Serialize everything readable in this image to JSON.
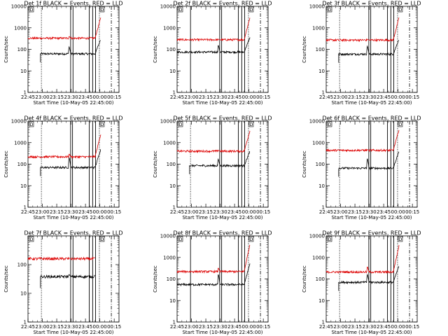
{
  "colors": {
    "events": "#000000",
    "lld": "#dd0000",
    "axes": "#000000"
  },
  "shared": {
    "xlabel": "Start Time (10-May-05 22:45:00)",
    "ylabel": "Counts/sec",
    "x_tick_labels": [
      "22:45",
      "23:00",
      "23:15",
      "23:30",
      "23:45",
      "00:00",
      "00:15"
    ],
    "y_tick_labels": [
      "1",
      "10",
      "100",
      "1000",
      "10000"
    ],
    "flag_marker": "D"
  },
  "chart_data": [
    {
      "type": "line",
      "title": "Det 1f BLACK = Events, RED = LLD",
      "y_scale": "log",
      "ylim": [
        1,
        10000
      ],
      "xlim": [
        0,
        95
      ],
      "x_unit": "minutes from 22:45",
      "vlines_solid": [
        44.5,
        47,
        64,
        67.5,
        70.5
      ],
      "vlines_dotted": [
        14,
        74.5
      ],
      "vlines_dashdot": [
        87
      ],
      "series": [
        {
          "start": 13,
          "end": 76,
          "base": 62,
          "spike_at": 43,
          "spike": 130,
          "rise_at": 70,
          "rise_to": 300
        },
        {
          "start": 0,
          "end": 76,
          "base": 330,
          "spike_at": 43,
          "spike": 400,
          "rise_at": 70,
          "rise_to": 3000
        }
      ]
    },
    {
      "type": "line",
      "title": "Det 2f BLACK = Events, RED = LLD",
      "y_scale": "log",
      "ylim": [
        1,
        10000
      ],
      "xlim": [
        0,
        95
      ],
      "x_unit": "minutes from 22:45",
      "vlines_solid": [
        14,
        44.5,
        46.5,
        64,
        67.5,
        70.5
      ],
      "vlines_dotted": [
        74.5
      ],
      "vlines_dashdot": [
        87
      ],
      "series": [
        {
          "start": 0,
          "end": 76,
          "base": 75,
          "spike_at": 43,
          "spike": 160,
          "rise_at": 70,
          "rise_to": 350
        },
        {
          "start": 0,
          "end": 76,
          "base": 280,
          "spike_at": 43,
          "spike": 300,
          "rise_at": 70,
          "rise_to": 3000
        }
      ]
    },
    {
      "type": "line",
      "title": "Det 3f BLACK = Events, RED = LLD",
      "y_scale": "log",
      "ylim": [
        1,
        10000
      ],
      "xlim": [
        0,
        95
      ],
      "x_unit": "minutes from 22:45",
      "vlines_solid": [
        44.5,
        46.5,
        64,
        67.5,
        70.5
      ],
      "vlines_dotted": [
        14,
        74.5
      ],
      "vlines_dashdot": [
        87
      ],
      "series": [
        {
          "start": 13,
          "end": 76,
          "base": 60,
          "spike_at": 43,
          "spike": 140,
          "rise_at": 70,
          "rise_to": 300
        },
        {
          "start": 0,
          "end": 76,
          "base": 270,
          "spike_at": 43,
          "spike": 300,
          "rise_at": 70,
          "rise_to": 3000
        }
      ]
    },
    {
      "type": "line",
      "title": "Det 4f BLACK = Events, RED = LLD",
      "y_scale": "log",
      "ylim": [
        1,
        10000
      ],
      "xlim": [
        0,
        95
      ],
      "x_unit": "minutes from 22:45",
      "vlines_solid": [
        44.5,
        46.5,
        64,
        67.5,
        70.5
      ],
      "vlines_dotted": [
        14,
        74.5
      ],
      "vlines_dashdot": [
        87
      ],
      "series": [
        {
          "start": 13,
          "end": 76,
          "base": 70,
          "spike_at": 43,
          "spike": 200,
          "rise_at": 70,
          "rise_to": 500
        },
        {
          "start": 0,
          "end": 76,
          "base": 220,
          "spike_at": 43,
          "spike": 300,
          "rise_at": 70,
          "rise_to": 2500
        }
      ]
    },
    {
      "type": "line",
      "title": "Det 5f BLACK = Events, RED = LLD",
      "y_scale": "log",
      "ylim": [
        1,
        10000
      ],
      "xlim": [
        0,
        95
      ],
      "x_unit": "minutes from 22:45",
      "vlines_solid": [
        44.5,
        46.5,
        64,
        67.5,
        70.5
      ],
      "vlines_dotted": [
        14,
        74.5
      ],
      "vlines_dashdot": [
        87
      ],
      "series": [
        {
          "start": 13,
          "end": 76,
          "base": 85,
          "spike_at": 43,
          "spike": 170,
          "rise_at": 70,
          "rise_to": 400
        },
        {
          "start": 0,
          "end": 76,
          "base": 400,
          "spike_at": 43,
          "spike": 450,
          "rise_at": 70,
          "rise_to": 3500
        }
      ]
    },
    {
      "type": "line",
      "title": "Det 6f BLACK = Events, RED = LLD",
      "y_scale": "log",
      "ylim": [
        1,
        10000
      ],
      "xlim": [
        0,
        95
      ],
      "x_unit": "minutes from 22:45",
      "vlines_solid": [
        44.5,
        46.5,
        64,
        67.5,
        70.5
      ],
      "vlines_dotted": [
        14,
        74.5
      ],
      "vlines_dashdot": [
        87
      ],
      "series": [
        {
          "start": 13,
          "end": 76,
          "base": 65,
          "spike_at": 43,
          "spike": 180,
          "rise_at": 70,
          "rise_to": 400
        },
        {
          "start": 0,
          "end": 76,
          "base": 440,
          "spike_at": 43,
          "spike": 480,
          "rise_at": 70,
          "rise_to": 4000
        }
      ]
    },
    {
      "type": "line",
      "title": "Det 7f BLACK = Events, RED = LLD",
      "y_scale": "log",
      "ylim": [
        1,
        1000
      ],
      "xlim": [
        0,
        95
      ],
      "x_unit": "minutes from 22:45",
      "y_tick_labels": [
        "1",
        "10",
        "100"
      ],
      "vlines_solid": [
        44.5,
        47,
        64,
        67.5,
        70.5
      ],
      "vlines_dotted": [
        14,
        74.5
      ],
      "vlines_dashdot": [
        87
      ],
      "series": [
        {
          "start": 13,
          "end": 70,
          "base": 38,
          "spike_at": 43,
          "spike": 45,
          "rise_at": 69,
          "rise_to": 45
        },
        {
          "start": 0,
          "end": 70,
          "base": 160,
          "spike_at": 43,
          "spike": 170,
          "rise_at": 69,
          "rise_to": 170
        }
      ]
    },
    {
      "type": "line",
      "title": "Det 8f BLACK = Events, RED = LLD",
      "y_scale": "log",
      "ylim": [
        1,
        10000
      ],
      "xlim": [
        0,
        95
      ],
      "x_unit": "minutes from 22:45",
      "vlines_solid": [
        14,
        44.5,
        46.5,
        64,
        67.5,
        70.5
      ],
      "vlines_dotted": [
        74.5
      ],
      "vlines_dashdot": [
        87
      ],
      "series": [
        {
          "start": 0,
          "end": 76,
          "base": 55,
          "spike_at": 43,
          "spike": 170,
          "rise_at": 70,
          "rise_to": 500
        },
        {
          "start": 0,
          "end": 76,
          "base": 220,
          "spike_at": 43,
          "spike": 330,
          "rise_at": 70,
          "rise_to": 4000
        }
      ]
    },
    {
      "type": "line",
      "title": "Det 9f BLACK = Events, RED = LLD",
      "y_scale": "log",
      "ylim": [
        1,
        10000
      ],
      "xlim": [
        0,
        95
      ],
      "x_unit": "minutes from 22:45",
      "vlines_solid": [
        44.5,
        46.5,
        64,
        67.5,
        70.5
      ],
      "vlines_dotted": [
        14,
        74.5
      ],
      "vlines_dashdot": [
        87
      ],
      "series": [
        {
          "start": 13,
          "end": 76,
          "base": 70,
          "spike_at": 43,
          "spike": 160,
          "rise_at": 70,
          "rise_to": 400
        },
        {
          "start": 0,
          "end": 76,
          "base": 210,
          "spike_at": 43,
          "spike": 380,
          "rise_at": 70,
          "rise_to": 3500
        }
      ]
    }
  ]
}
